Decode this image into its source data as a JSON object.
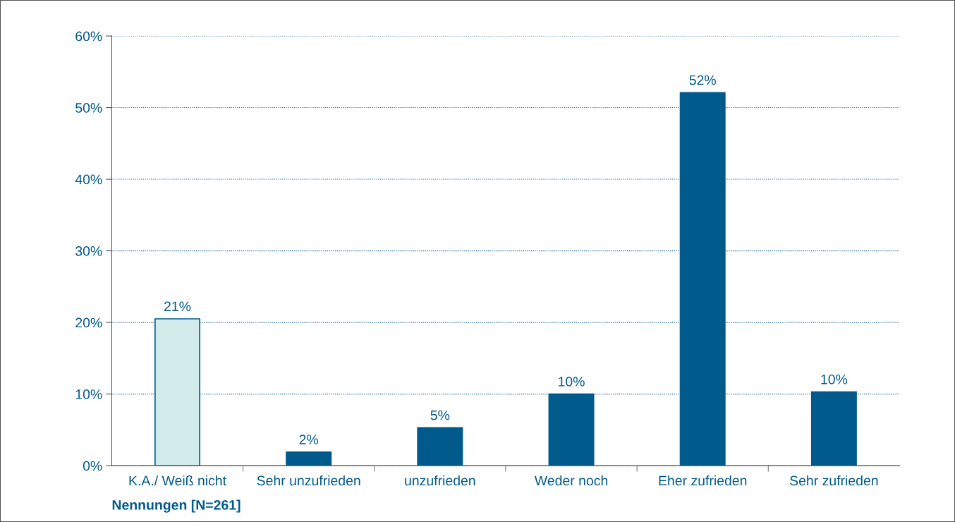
{
  "chart_data": {
    "type": "bar",
    "categories": [
      "K.A./ Weiß nicht",
      "Sehr unzufrieden",
      "unzufrieden",
      "Weder noch",
      "Eher zufrieden",
      "Sehr zufrieden"
    ],
    "values": [
      20.5,
      1.9,
      5.3,
      10.0,
      52.1,
      10.3
    ],
    "value_labels": [
      "21%",
      "2%",
      "5%",
      "10%",
      "52%",
      "10%"
    ],
    "colors": [
      "#d4ebeb",
      "#005a8c",
      "#005a8c",
      "#005a8c",
      "#005a8c",
      "#005a8c"
    ],
    "ylim": [
      0,
      60
    ],
    "yticks": [
      {
        "value": 0,
        "label": "0%"
      },
      {
        "value": 10,
        "label": "10%"
      },
      {
        "value": 20,
        "label": "20%"
      },
      {
        "value": 30,
        "label": "30%"
      },
      {
        "value": 40,
        "label": "40%"
      },
      {
        "value": 50,
        "label": "50%"
      },
      {
        "value": 60,
        "label": "60%"
      }
    ],
    "grid": "y",
    "annotations": [
      "Nennungen [N=261]"
    ]
  }
}
